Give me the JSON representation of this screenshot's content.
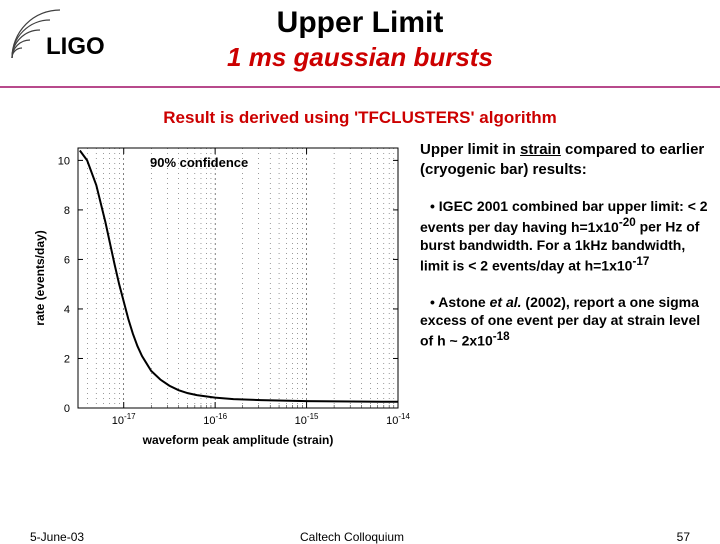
{
  "header": {
    "logo_text": "LIGO",
    "title": "Upper Limit",
    "subtitle": "1 ms gaussian bursts"
  },
  "result_line": "Result is derived using 'TFCLUSTERS' algorithm",
  "chart": {
    "type": "line",
    "confidence_label": "90% confidence",
    "xlabel": "waveform peak amplitude (strain)",
    "ylabel": "rate (events/day)",
    "x_log": true,
    "x_ticks": [
      "10^-17",
      "10^-16",
      "10^-15",
      "10^-14"
    ],
    "y_ticks": [
      0,
      2,
      4,
      6,
      8,
      10
    ],
    "ylim": [
      0,
      10.5
    ],
    "xlim_log": [
      -17.5,
      -14
    ],
    "curve_log10x": [
      -17.48,
      -17.4,
      -17.3,
      -17.2,
      -17.1,
      -17.05,
      -17.0,
      -16.95,
      -16.9,
      -16.85,
      -16.8,
      -16.75,
      -16.7,
      -16.6,
      -16.5,
      -16.4,
      -16.3,
      -16.2,
      -16.0,
      -15.8,
      -15.5,
      -15.0,
      -14.5,
      -14.0
    ],
    "curve_y": [
      10.4,
      10.0,
      9.0,
      7.5,
      5.8,
      5.0,
      4.3,
      3.6,
      3.0,
      2.5,
      2.1,
      1.8,
      1.5,
      1.15,
      0.9,
      0.72,
      0.6,
      0.52,
      0.42,
      0.36,
      0.32,
      0.28,
      0.26,
      0.25
    ],
    "line_color": "#000000",
    "line_width": 2,
    "grid_color": "#000000",
    "background_color": "#ffffff",
    "tick_fontsize": 11,
    "label_fontsize": 12
  },
  "compare": {
    "head_1": "Upper limit in ",
    "head_strain": "strain",
    "head_2": " compared to earlier (cryogenic bar) results:",
    "bullet1_pre": "•   IGEC 2001 combined bar upper limit: < 2 events per day having h=1x10",
    "bullet1_exp1": "-20",
    "bullet1_mid": " per Hz of burst bandwidth. For a 1kHz bandwidth, limit is < 2 events/day at  h=1x10",
    "bullet1_exp2": "-17",
    "bullet2_pre": "•   Astone ",
    "bullet2_ital": "et al.",
    "bullet2_mid": " (2002),  report a one sigma excess of one event per day at strain level of h ~ 2x10",
    "bullet2_exp": "-18"
  },
  "footer": {
    "date": "5-June-03",
    "venue": "Caltech Colloquium",
    "page": "57"
  },
  "colors": {
    "red": "#cc0000",
    "hr": "#b84a8c",
    "logo_stroke": "#404040"
  }
}
